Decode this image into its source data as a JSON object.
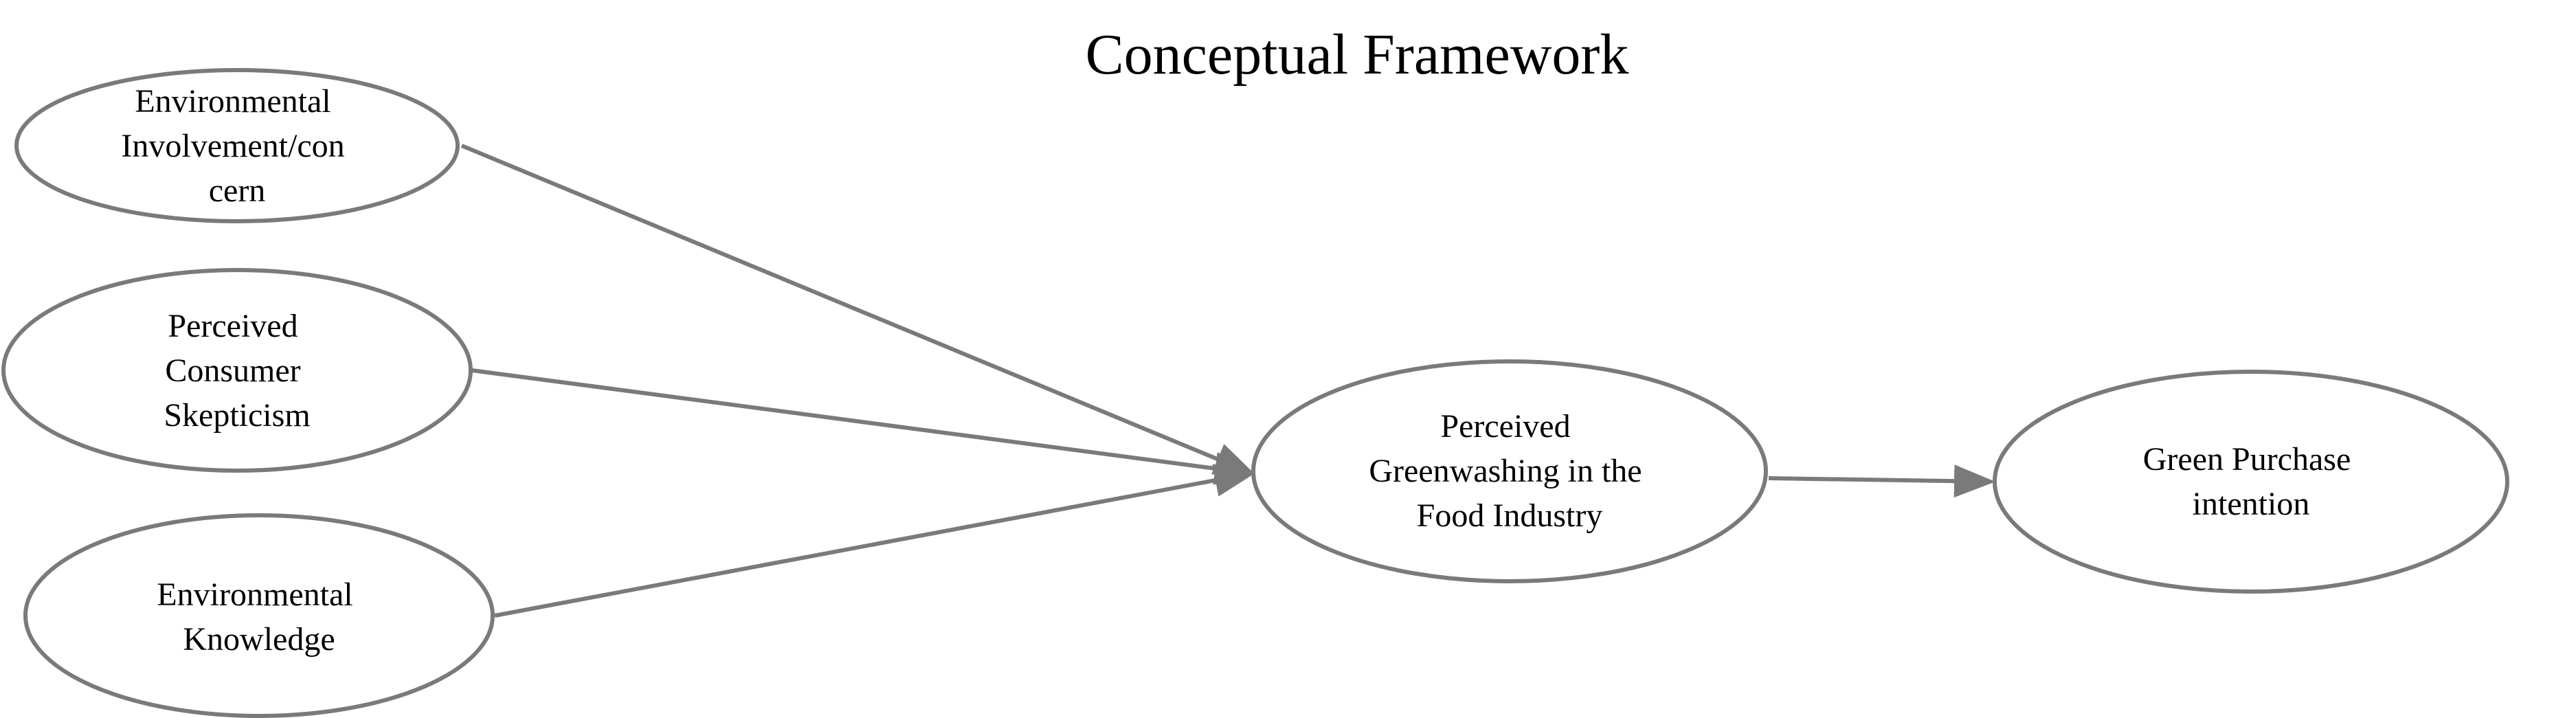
{
  "title": "Conceptual Framework",
  "colors": {
    "stroke": "#7a7a7a",
    "text": "#000000",
    "background": "#ffffff"
  },
  "nodes": {
    "env_concern": {
      "lines": [
        "Environmental",
        "Involvement/con",
        "cern"
      ]
    },
    "skepticism": {
      "lines": [
        "Perceived",
        "Consumer",
        "Skepticism"
      ]
    },
    "env_knowledge": {
      "lines": [
        "Environmental",
        "Knowledge"
      ]
    },
    "greenwashing": {
      "lines": [
        "Perceived",
        "Greenwashing in the",
        "Food Industry"
      ]
    },
    "purchase_intention": {
      "lines": [
        "Green Purchase",
        "intention"
      ]
    }
  },
  "edges": [
    {
      "from": "Environmental Involvement/concern",
      "to": "Perceived Greenwashing in the Food Industry"
    },
    {
      "from": "Perceived Consumer Skepticism",
      "to": "Perceived Greenwashing in the Food Industry"
    },
    {
      "from": "Environmental Knowledge",
      "to": "Perceived Greenwashing in the Food Industry"
    },
    {
      "from": "Perceived Greenwashing in the Food Industry",
      "to": "Green Purchase intention"
    }
  ]
}
